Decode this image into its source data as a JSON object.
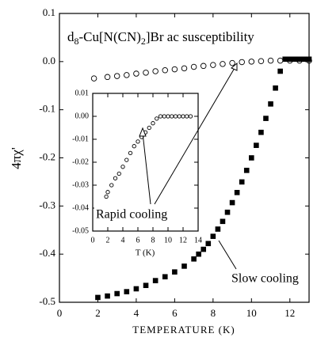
{
  "chart_data": [
    {
      "type": "scatter",
      "title_parts": [
        "d",
        "8",
        "-Cu[N(CN)",
        "2",
        "]Br ac susceptibility"
      ],
      "x_label": "TEMPERATURE (K)",
      "y_label": "4πχ'",
      "xlim": [
        0,
        13
      ],
      "xticks": [
        0,
        2,
        4,
        6,
        8,
        10,
        12
      ],
      "ylim": [
        -0.5,
        0.1
      ],
      "yticks": [
        -0.5,
        -0.4,
        -0.3,
        -0.2,
        -0.1,
        {
          "value": 0,
          "label": "0.0"
        },
        0.1
      ],
      "series": [
        {
          "name": "Slow cooling",
          "marker": "square",
          "color": "#000000",
          "x": [
            2.0,
            2.5,
            3.0,
            3.5,
            4.0,
            4.5,
            5.0,
            5.5,
            6.0,
            6.5,
            7.0,
            7.25,
            7.5,
            7.75,
            8.0,
            8.25,
            8.5,
            8.75,
            9.0,
            9.25,
            9.5,
            9.75,
            10.0,
            10.25,
            10.5,
            10.75,
            11.0,
            11.25,
            11.5,
            11.75,
            12.0,
            12.25,
            12.5,
            12.75,
            13.0
          ],
          "values": [
            -0.49,
            -0.487,
            -0.482,
            -0.478,
            -0.472,
            -0.465,
            -0.455,
            -0.447,
            -0.437,
            -0.425,
            -0.41,
            -0.4,
            -0.39,
            -0.378,
            -0.363,
            -0.348,
            -0.332,
            -0.313,
            -0.293,
            -0.272,
            -0.25,
            -0.226,
            -0.2,
            -0.174,
            -0.147,
            -0.118,
            -0.088,
            -0.055,
            -0.02,
            0.005,
            0.005,
            0.005,
            0.005,
            0.005,
            0.005
          ]
        },
        {
          "name": "Rapid cooling",
          "marker": "circle",
          "color": "#000000",
          "x": [
            1.8,
            2.5,
            3,
            3.5,
            4,
            4.5,
            5,
            5.5,
            6,
            6.5,
            7,
            7.5,
            8,
            8.5,
            9,
            9.5,
            10,
            10.5,
            11,
            11.5,
            12,
            12.5,
            13
          ],
          "values": [
            -0.035,
            -0.032,
            -0.03,
            -0.028,
            -0.025,
            -0.023,
            -0.02,
            -0.018,
            -0.016,
            -0.014,
            -0.011,
            -0.009,
            -0.007,
            -0.005,
            -0.003,
            -0.001,
            0.0,
            0.001,
            0.002,
            0.002,
            0.002,
            0.002,
            0.002
          ]
        }
      ]
    },
    {
      "type": "scatter",
      "x_label": "T (K)",
      "xlim": [
        0,
        14
      ],
      "xticks": [
        0,
        2,
        4,
        6,
        8,
        10,
        12,
        14
      ],
      "ylim": [
        -0.05,
        0.01
      ],
      "yticks": [
        -0.05,
        -0.04,
        -0.03,
        -0.02,
        -0.01,
        {
          "value": 0,
          "label": "0.00"
        },
        0.01
      ],
      "series": [
        {
          "marker": "circle",
          "color": "#000000",
          "x": [
            1.8,
            2,
            2.5,
            3,
            3.5,
            4,
            4.5,
            5,
            5.5,
            6,
            6.5,
            7,
            7.5,
            8,
            8.5,
            9,
            9.5,
            10,
            10.5,
            11,
            11.5,
            12,
            12.5,
            13
          ],
          "values": [
            -0.035,
            -0.033,
            -0.03,
            -0.027,
            -0.025,
            -0.022,
            -0.019,
            -0.016,
            -0.013,
            -0.011,
            -0.009,
            -0.007,
            -0.005,
            -0.003,
            -0.001,
            0.0,
            0.0,
            0.0,
            0.0,
            0.0,
            0.0,
            0.0,
            0.0,
            0.0
          ]
        }
      ]
    }
  ]
}
